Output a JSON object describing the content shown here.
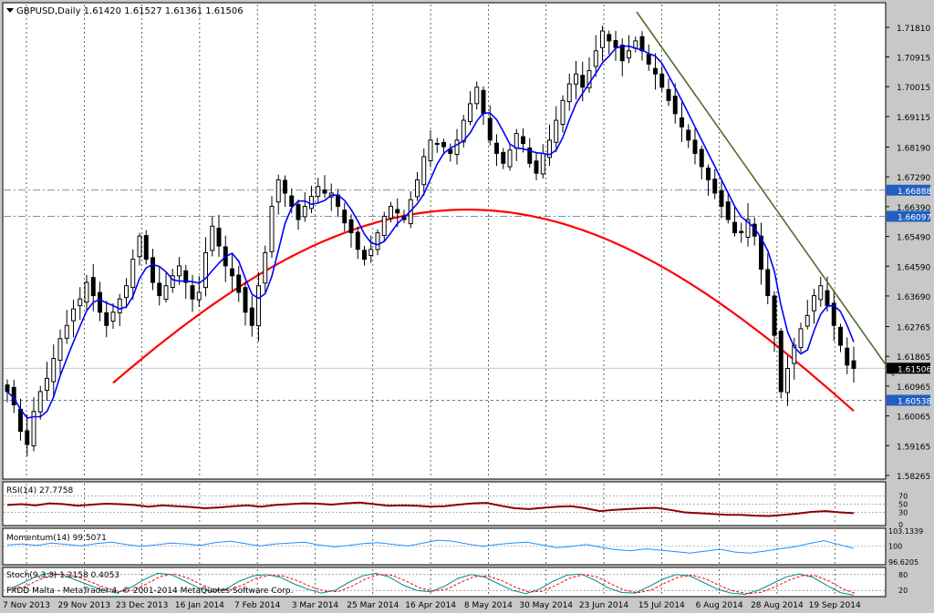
{
  "symbol_header": "GBPUSD,Daily  1.61420 1.61527 1.61361 1.61506",
  "colors": {
    "background": "#ffffff",
    "frame": "#c8c8c8",
    "grid": "#000000",
    "candle": "#000000",
    "ma_fast": "#0000ff",
    "ma_slow": "#ff0000",
    "trendline": "#556b2f",
    "rsi": "#8b0000",
    "momentum": "#1e90ff",
    "stoch_main": "#008b8b",
    "stoch_signal": "#ff0000",
    "level_label_bg": "#2060c0"
  },
  "price_axis": {
    "ticks": [
      "1.71810",
      "1.70915",
      "1.70015",
      "1.69115",
      "1.68190",
      "1.67290",
      "1.66390",
      "1.65490",
      "1.64590",
      "1.63690",
      "1.62765",
      "1.61865",
      "1.60965",
      "1.60065",
      "1.59165",
      "1.58265"
    ]
  },
  "horizontal_levels": [
    {
      "label": "1.66888",
      "price": 1.66888,
      "style": "dashdot"
    },
    {
      "label": "1.66097",
      "price": 1.66097,
      "style": "dashdot"
    },
    {
      "label": "1.60538",
      "price": 1.60538,
      "style": "dashed"
    }
  ],
  "current_price": {
    "label": "1.61506",
    "price": 1.61506
  },
  "date_axis": {
    "labels": [
      "7 Nov 2013",
      "29 Nov 2013",
      "23 Dec 2013",
      "16 Jan 2014",
      "7 Feb 2014",
      "3 Mar 2014",
      "25 Mar 2014",
      "16 Apr 2014",
      "8 May 2014",
      "30 May 2014",
      "23 Jun 2014",
      "15 Jul 2014",
      "6 Aug 2014",
      "28 Aug 2014",
      "19 Sep 2014"
    ]
  },
  "chart_data": [
    {
      "type": "candlestick",
      "title": "GBPUSD,Daily",
      "ylim": [
        1.58,
        1.723
      ],
      "series": [
        {
          "name": "GBPUSD",
          "close_path": [
            1.608,
            1.604,
            1.596,
            1.592,
            1.602,
            1.608,
            1.612,
            1.618,
            1.624,
            1.628,
            1.633,
            1.636,
            1.641,
            1.637,
            1.632,
            1.628,
            1.632,
            1.636,
            1.64,
            1.648,
            1.655,
            1.648,
            1.641,
            1.637,
            1.64,
            1.643,
            1.646,
            1.641,
            1.636,
            1.638,
            1.65,
            1.658,
            1.652,
            1.646,
            1.643,
            1.638,
            1.632,
            1.628,
            1.64,
            1.65,
            1.664,
            1.672,
            1.668,
            1.664,
            1.66,
            1.664,
            1.667,
            1.67,
            1.668,
            1.668,
            1.664,
            1.659,
            1.656,
            1.651,
            1.648,
            1.651,
            1.656,
            1.661,
            1.664,
            1.662,
            1.66,
            1.666,
            1.672,
            1.679,
            1.684,
            1.683,
            1.682,
            1.68,
            1.684,
            1.69,
            1.695,
            1.7,
            1.692,
            1.684,
            1.68,
            1.677,
            1.681,
            1.686,
            1.683,
            1.677,
            1.674,
            1.68,
            1.684,
            1.69,
            1.696,
            1.701,
            1.704,
            1.7,
            1.705,
            1.711,
            1.717,
            1.714,
            1.712,
            1.708,
            1.711,
            1.714,
            1.711,
            1.707,
            1.704,
            1.7,
            1.696,
            1.692,
            1.688,
            1.684,
            1.68,
            1.676,
            1.672,
            1.668,
            1.664,
            1.66,
            1.656,
            1.656,
            1.66,
            1.655,
            1.645,
            1.637,
            1.625,
            1.608,
            1.615,
            1.622,
            1.627,
            1.631,
            1.637,
            1.64,
            1.634,
            1.628,
            1.622,
            1.616,
            1.615
          ]
        }
      ],
      "indicators": [
        {
          "name": "MA fast",
          "color": "#0000ff"
        },
        {
          "name": "MA slow",
          "color": "#ff0000"
        }
      ]
    },
    {
      "type": "line",
      "title": "RSI(14) 27.7758",
      "ylim": [
        0,
        100
      ],
      "levels": [
        "70",
        "50",
        "30",
        "0"
      ],
      "values": [
        48,
        50,
        47,
        52,
        50,
        46,
        49,
        51,
        50,
        48,
        44,
        47,
        45,
        43,
        40,
        42,
        45,
        47,
        44,
        48,
        50,
        52,
        51,
        49,
        52,
        54,
        50,
        46,
        47,
        46,
        44,
        45,
        49,
        52,
        53,
        46,
        40,
        38,
        41,
        44,
        45,
        40,
        33,
        36,
        38,
        40,
        41,
        36,
        30,
        28,
        26,
        24,
        24,
        22,
        21,
        24,
        27,
        31,
        33,
        30,
        28
      ]
    },
    {
      "type": "line",
      "title": "Momentum(14) 99.5071",
      "levels": [
        "103.1339",
        "100",
        "96.6205"
      ],
      "values": [
        100.2,
        100.4,
        100.1,
        100.6,
        100.3,
        100.0,
        100.5,
        100.8,
        100.3,
        99.9,
        100.2,
        100.6,
        100.4,
        100.1,
        100.7,
        101.0,
        100.5,
        100.0,
        100.4,
        100.6,
        100.8,
        100.2,
        99.8,
        100.1,
        100.5,
        100.7,
        100.3,
        100.0,
        100.6,
        101.2,
        101.0,
        100.4,
        99.9,
        100.3,
        100.6,
        100.8,
        100.2,
        99.6,
        99.9,
        100.3,
        99.7,
        99.2,
        99.0,
        99.4,
        99.1,
        98.8,
        98.5,
        98.9,
        99.3,
        98.7,
        98.5,
        98.9,
        99.4,
        99.8,
        100.5,
        101.1,
        100.3,
        99.5
      ]
    },
    {
      "type": "line",
      "title": "Stoch(9,3,3) 1.2158 0.4053",
      "levels": [
        "80",
        "20"
      ],
      "values": [
        20,
        45,
        70,
        85,
        80,
        60,
        40,
        20,
        10,
        30,
        60,
        85,
        80,
        55,
        30,
        15,
        25,
        55,
        75,
        80,
        70,
        45,
        25,
        10,
        20,
        50,
        75,
        85,
        70,
        40,
        20,
        15,
        35,
        65,
        80,
        70,
        45,
        20,
        8,
        25,
        55,
        78,
        82,
        60,
        30,
        12,
        10,
        35,
        62,
        80,
        75,
        50,
        25,
        10,
        5,
        20,
        45,
        70,
        82,
        70,
        40,
        12,
        2
      ]
    }
  ],
  "copyright": "FXDD Malta - MetaTrader 4, © 2001-2014 MetaQuotes Software Corp."
}
